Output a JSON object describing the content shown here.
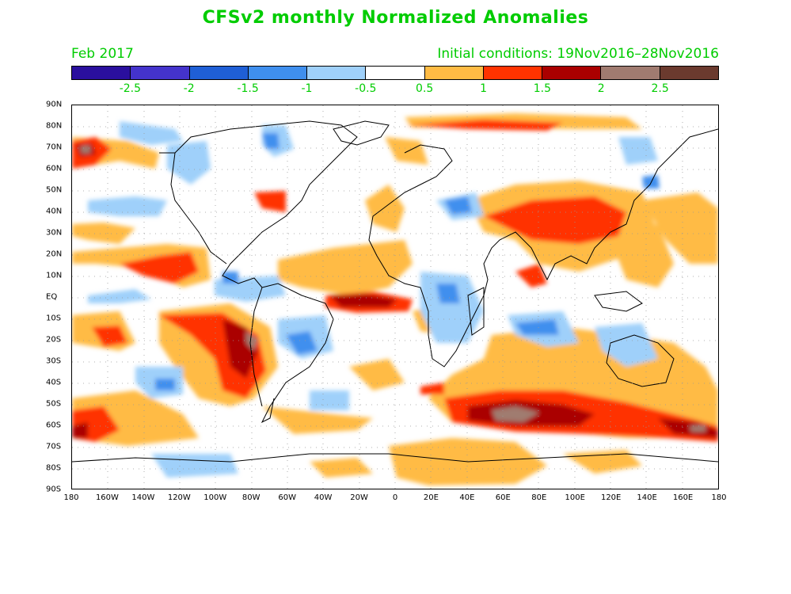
{
  "title": "CFSv2 monthly Normalized Anomalies",
  "month": "Feb 2017",
  "initial_conditions": "Initial conditions: 19Nov2016–28Nov2016",
  "legend": {
    "colors": [
      "#2a0f9e",
      "#4433cc",
      "#1f5fd6",
      "#3f8fee",
      "#9fd0fa",
      "#ffffff",
      "#ffbb44",
      "#ff3300",
      "#aa0000",
      "#a07b70",
      "#6b3a2e"
    ],
    "labels": [
      "-2.5",
      "-2",
      "-1.5",
      "-1",
      "-0.5",
      "0.5",
      "1",
      "1.5",
      "2",
      "2.5"
    ]
  },
  "axes": {
    "lat_labels": [
      "90N",
      "80N",
      "70N",
      "60N",
      "50N",
      "40N",
      "30N",
      "20N",
      "10N",
      "EQ",
      "10S",
      "20S",
      "30S",
      "40S",
      "50S",
      "60S",
      "70S",
      "80S",
      "90S"
    ],
    "lon_labels": [
      "180",
      "160W",
      "140W",
      "120W",
      "100W",
      "80W",
      "60W",
      "40W",
      "20W",
      "0",
      "20E",
      "40E",
      "60E",
      "80E",
      "100E",
      "120E",
      "140E",
      "160E",
      "180"
    ]
  }
}
